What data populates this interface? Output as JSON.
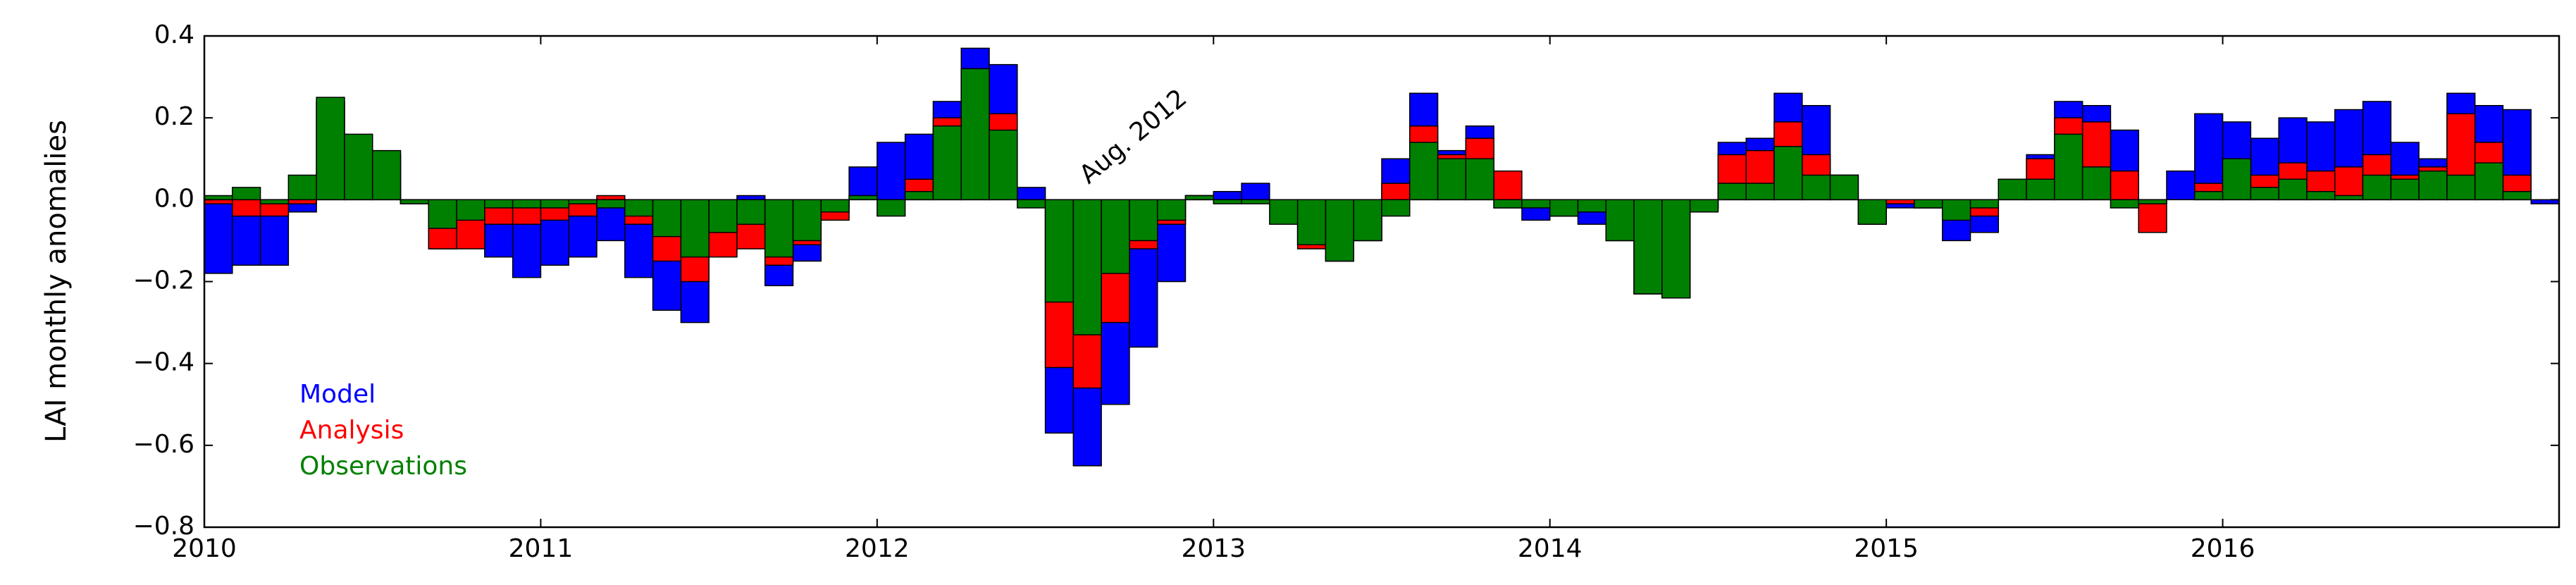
{
  "chart_data": {
    "type": "bar",
    "overlaid": true,
    "ylabel": "LAI monthly anomalies",
    "annotation": "Aug. 2012",
    "legend": "lower left",
    "xlim": [
      2010,
      2017
    ],
    "xticks": [
      2010,
      2011,
      2012,
      2013,
      2014,
      2015,
      2016
    ],
    "ylim": [
      -0.8,
      0.4
    ],
    "yticks": [
      {
        "value": -0.8,
        "label": "−0.8"
      },
      {
        "value": -0.6,
        "label": "−0.6"
      },
      {
        "value": -0.4,
        "label": "−0.4"
      },
      {
        "value": -0.2,
        "label": "−0.2"
      },
      {
        "value": 0.0,
        "label": "0.0"
      },
      0.2,
      0.4
    ],
    "x": [
      2010,
      2010.0833,
      2010.1667,
      2010.25,
      2010.3333,
      2010.4167,
      2010.5,
      2010.5833,
      2010.6667,
      2010.75,
      2010.8333,
      2010.9167,
      2011,
      2011.0833,
      2011.1667,
      2011.25,
      2011.3333,
      2011.4167,
      2011.5,
      2011.5833,
      2011.6667,
      2011.75,
      2011.8333,
      2011.9167,
      2012,
      2012.0833,
      2012.1667,
      2012.25,
      2012.3333,
      2012.4167,
      2012.5,
      2012.5833,
      2012.6667,
      2012.75,
      2012.8333,
      2012.9167,
      2013,
      2013.0833,
      2013.1667,
      2013.25,
      2013.3333,
      2013.4167,
      2013.5,
      2013.5833,
      2013.6667,
      2013.75,
      2013.8333,
      2013.9167,
      2014,
      2014.0833,
      2014.1667,
      2014.25,
      2014.3333,
      2014.4167,
      2014.5,
      2014.5833,
      2014.6667,
      2014.75,
      2014.8333,
      2014.9167,
      2015,
      2015.0833,
      2015.1667,
      2015.25,
      2015.3333,
      2015.4167,
      2015.5,
      2015.5833,
      2015.6667,
      2015.75,
      2015.8333,
      2015.9167,
      2016,
      2016.0833,
      2016.1667,
      2016.25,
      2016.3333,
      2016.4167,
      2016.5,
      2016.5833,
      2016.6667,
      2016.75,
      2016.8333,
      2016.9167
    ],
    "series": [
      {
        "name": "Model",
        "color": "#0000ff",
        "values": [
          -0.18,
          -0.16,
          -0.16,
          -0.03,
          0.24,
          0.15,
          0.11,
          -0.01,
          -0.12,
          -0.1,
          -0.14,
          -0.19,
          -0.16,
          -0.14,
          -0.1,
          -0.19,
          -0.27,
          -0.3,
          -0.13,
          0.01,
          -0.21,
          -0.15,
          -0.02,
          0.08,
          0.14,
          0.16,
          0.24,
          0.37,
          0.33,
          0.03,
          -0.57,
          -0.65,
          -0.5,
          -0.36,
          -0.2,
          0.01,
          0.02,
          0.04,
          0.0,
          -0.11,
          -0.15,
          -0.1,
          0.1,
          0.26,
          0.12,
          0.18,
          -0.02,
          -0.05,
          -0.04,
          -0.06,
          -0.1,
          -0.23,
          -0.24,
          -0.02,
          0.14,
          0.15,
          0.26,
          0.23,
          0.06,
          -0.06,
          -0.02,
          -0.02,
          -0.1,
          -0.08,
          0.05,
          0.11,
          0.24,
          0.23,
          0.17,
          0.0,
          0.07,
          0.21,
          0.19,
          0.15,
          0.2,
          0.19,
          0.22,
          0.24,
          0.14,
          0.1,
          0.26,
          0.23,
          0.22,
          -0.01
        ]
      },
      {
        "name": "Analysis",
        "color": "#ff0000",
        "values": [
          -0.01,
          -0.04,
          -0.04,
          -0.01,
          0.24,
          0.15,
          0.11,
          -0.01,
          -0.12,
          -0.12,
          -0.06,
          -0.06,
          -0.05,
          -0.04,
          0.01,
          -0.06,
          -0.15,
          -0.2,
          -0.14,
          -0.12,
          -0.16,
          -0.11,
          -0.05,
          0.0,
          0.0,
          0.05,
          0.2,
          0.32,
          0.21,
          0.0,
          -0.41,
          -0.46,
          -0.3,
          -0.12,
          -0.06,
          0.01,
          0.0,
          0.0,
          -0.01,
          -0.12,
          -0.15,
          -0.1,
          0.04,
          0.18,
          0.11,
          0.15,
          0.07,
          -0.01,
          -0.04,
          -0.03,
          -0.1,
          -0.23,
          -0.24,
          -0.02,
          0.11,
          0.12,
          0.19,
          0.11,
          0.06,
          -0.06,
          -0.01,
          -0.02,
          -0.04,
          -0.04,
          0.05,
          0.1,
          0.2,
          0.19,
          0.07,
          -0.08,
          0.0,
          0.04,
          0.1,
          0.06,
          0.09,
          0.07,
          0.08,
          0.11,
          0.06,
          0.08,
          0.21,
          0.14,
          0.06,
          0.0
        ]
      },
      {
        "name": "Observations",
        "color": "#008000",
        "values": [
          0.01,
          0.03,
          -0.01,
          0.06,
          0.25,
          0.16,
          0.12,
          -0.01,
          -0.07,
          -0.05,
          -0.02,
          -0.02,
          -0.02,
          -0.01,
          -0.02,
          -0.04,
          -0.09,
          -0.14,
          -0.08,
          -0.06,
          -0.14,
          -0.1,
          -0.03,
          0.01,
          -0.04,
          0.02,
          0.18,
          0.32,
          0.17,
          -0.02,
          -0.25,
          -0.33,
          -0.18,
          -0.1,
          -0.05,
          0.01,
          -0.01,
          -0.01,
          -0.06,
          -0.11,
          -0.15,
          -0.1,
          -0.04,
          0.14,
          0.1,
          0.1,
          -0.02,
          -0.02,
          -0.04,
          -0.03,
          -0.1,
          -0.23,
          -0.24,
          -0.03,
          0.04,
          0.04,
          0.13,
          0.06,
          0.06,
          -0.06,
          0.0,
          -0.02,
          -0.05,
          -0.02,
          0.05,
          0.05,
          0.16,
          0.08,
          -0.02,
          -0.01,
          0.0,
          0.02,
          0.1,
          0.03,
          0.05,
          0.02,
          0.01,
          0.06,
          0.05,
          0.07,
          0.06,
          0.09,
          0.02,
          0.0
        ]
      }
    ]
  }
}
